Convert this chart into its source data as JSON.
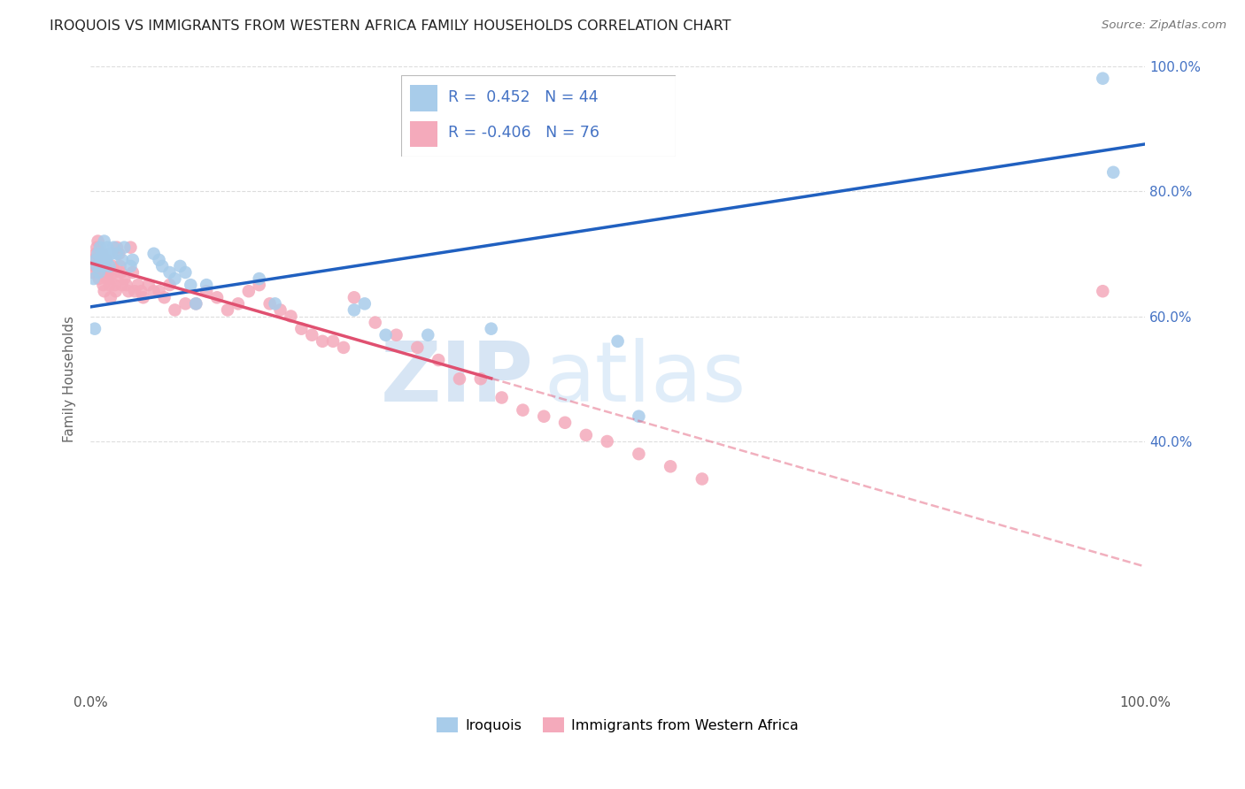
{
  "title": "IROQUOIS VS IMMIGRANTS FROM WESTERN AFRICA FAMILY HOUSEHOLDS CORRELATION CHART",
  "source": "Source: ZipAtlas.com",
  "ylabel": "Family Households",
  "watermark_zip": "ZIP",
  "watermark_atlas": "atlas",
  "xlim": [
    0.0,
    1.0
  ],
  "ylim": [
    0.0,
    1.0
  ],
  "iroquois_R": 0.452,
  "iroquois_N": 44,
  "immigrants_R": -0.406,
  "immigrants_N": 76,
  "iroquois_color": "#A8CCEA",
  "immigrants_color": "#F4AABB",
  "iroquois_line_color": "#2060C0",
  "immigrants_line_color": "#E05070",
  "grid_color": "#DDDDDD",
  "background_color": "#FFFFFF",
  "right_tick_color": "#4472C4",
  "legend_box_edge": "#BBBBBB",
  "iroquois_label": "Iroquois",
  "immigrants_label": "Immigrants from Western Africa",
  "iroquois_x": [
    0.003,
    0.004,
    0.005,
    0.006,
    0.007,
    0.008,
    0.009,
    0.01,
    0.011,
    0.012,
    0.013,
    0.014,
    0.015,
    0.016,
    0.017,
    0.018,
    0.02,
    0.022,
    0.025,
    0.03,
    0.032,
    0.038,
    0.04,
    0.06,
    0.065,
    0.068,
    0.075,
    0.08,
    0.085,
    0.09,
    0.095,
    0.1,
    0.11,
    0.16,
    0.175,
    0.25,
    0.26,
    0.28,
    0.32,
    0.38,
    0.5,
    0.52,
    0.96,
    0.97
  ],
  "iroquois_y": [
    0.66,
    0.58,
    0.69,
    0.68,
    0.7,
    0.67,
    0.71,
    0.69,
    0.7,
    0.68,
    0.72,
    0.7,
    0.69,
    0.71,
    0.7,
    0.68,
    0.7,
    0.71,
    0.7,
    0.69,
    0.71,
    0.68,
    0.69,
    0.7,
    0.69,
    0.68,
    0.67,
    0.66,
    0.68,
    0.67,
    0.65,
    0.62,
    0.65,
    0.66,
    0.62,
    0.61,
    0.62,
    0.57,
    0.57,
    0.58,
    0.56,
    0.44,
    0.98,
    0.83
  ],
  "immigrants_x": [
    0.002,
    0.003,
    0.004,
    0.005,
    0.006,
    0.007,
    0.008,
    0.009,
    0.01,
    0.011,
    0.012,
    0.013,
    0.014,
    0.015,
    0.016,
    0.017,
    0.018,
    0.019,
    0.02,
    0.021,
    0.022,
    0.023,
    0.024,
    0.025,
    0.027,
    0.028,
    0.029,
    0.03,
    0.032,
    0.034,
    0.036,
    0.038,
    0.04,
    0.042,
    0.045,
    0.048,
    0.05,
    0.055,
    0.06,
    0.065,
    0.07,
    0.075,
    0.08,
    0.09,
    0.1,
    0.11,
    0.12,
    0.13,
    0.14,
    0.15,
    0.16,
    0.17,
    0.18,
    0.19,
    0.2,
    0.21,
    0.22,
    0.23,
    0.24,
    0.25,
    0.27,
    0.29,
    0.31,
    0.33,
    0.35,
    0.37,
    0.39,
    0.41,
    0.43,
    0.45,
    0.47,
    0.49,
    0.52,
    0.55,
    0.58,
    0.96
  ],
  "immigrants_y": [
    0.67,
    0.69,
    0.68,
    0.7,
    0.71,
    0.72,
    0.66,
    0.68,
    0.67,
    0.7,
    0.65,
    0.64,
    0.68,
    0.69,
    0.66,
    0.67,
    0.65,
    0.63,
    0.66,
    0.68,
    0.67,
    0.65,
    0.64,
    0.71,
    0.7,
    0.68,
    0.67,
    0.65,
    0.66,
    0.65,
    0.64,
    0.71,
    0.67,
    0.64,
    0.65,
    0.64,
    0.63,
    0.65,
    0.64,
    0.64,
    0.63,
    0.65,
    0.61,
    0.62,
    0.62,
    0.64,
    0.63,
    0.61,
    0.62,
    0.64,
    0.65,
    0.62,
    0.61,
    0.6,
    0.58,
    0.57,
    0.56,
    0.56,
    0.55,
    0.63,
    0.59,
    0.57,
    0.55,
    0.53,
    0.5,
    0.5,
    0.47,
    0.45,
    0.44,
    0.43,
    0.41,
    0.4,
    0.38,
    0.36,
    0.34,
    0.64
  ],
  "imm_line_x_start": 0.0,
  "imm_line_x_solid_end": 0.38,
  "imm_line_x_end": 1.0
}
